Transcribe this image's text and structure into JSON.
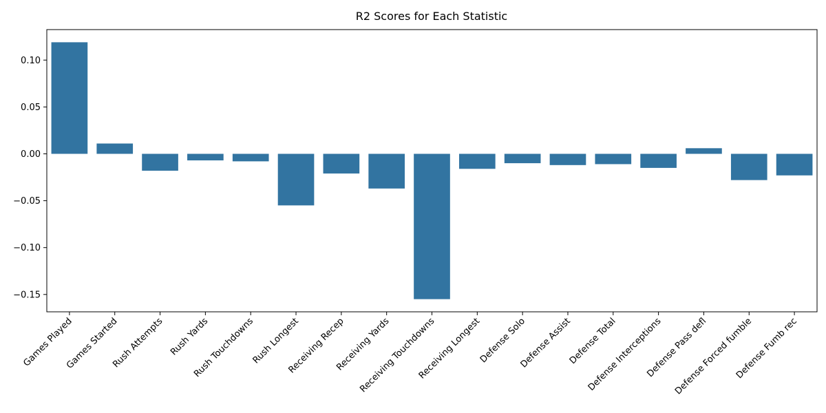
{
  "chart_data": {
    "type": "bar",
    "title": "R2 Scores for Each Statistic",
    "xlabel": "",
    "ylabel": "",
    "categories": [
      "Games Played",
      "Games Started",
      "Rush Attempts",
      "Rush Yards",
      "Rush Touchdowns",
      "Rush Longest",
      "Receiving Recep",
      "Receiving Yards",
      "Receiving Touchdowns",
      "Receiving Longest",
      "Defense Solo",
      "Defense Assist",
      "Defense Total",
      "Defense Interceptions",
      "Defense Pass defl",
      "Defense Forced fumble",
      "Defense Fumb rec"
    ],
    "values": [
      0.119,
      0.011,
      -0.018,
      -0.007,
      -0.008,
      -0.055,
      -0.021,
      -0.037,
      -0.155,
      -0.016,
      -0.01,
      -0.012,
      -0.011,
      -0.015,
      0.006,
      -0.028,
      -0.023
    ],
    "ylim": [
      -0.1685,
      0.1325
    ],
    "yticks": [
      -0.15,
      -0.1,
      -0.05,
      0.0,
      0.05,
      0.1
    ],
    "ytick_labels": [
      "−0.15",
      "−0.10",
      "−0.05",
      "0.00",
      "0.05",
      "0.10"
    ],
    "bar_color": "#3274a1",
    "grid": false,
    "legend": "none"
  }
}
